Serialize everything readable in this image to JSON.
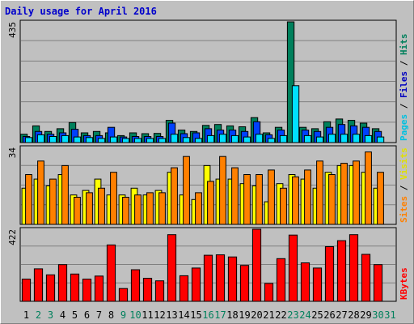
{
  "title": "Daily usage for April 2016",
  "colors": {
    "hits": "#00805c",
    "files": "#0040ff",
    "pages": "#00e0ff",
    "visits": "#ffff00",
    "sites": "#ff8000",
    "kbytes": "#ff0000",
    "weekend": "#00805c",
    "weekday": "#000000",
    "background": "#c0c0c0",
    "grid": "#808080"
  },
  "legend": {
    "top": [
      {
        "name": "Pages",
        "color": "#00c0e0"
      },
      {
        "name": "Files",
        "color": "#0000c0"
      },
      {
        "name": "Hits",
        "color": "#00805c"
      }
    ],
    "middle": [
      {
        "name": "Sites",
        "color": "#ff8000"
      },
      {
        "name": "Visits",
        "color": "#e0e000"
      }
    ],
    "bottom": [
      {
        "name": "KBytes",
        "color": "#ff0000"
      }
    ]
  },
  "chart_data": {
    "type": "bar",
    "categories": [
      "1",
      "2",
      "3",
      "4",
      "5",
      "6",
      "7",
      "8",
      "9",
      "10",
      "11",
      "12",
      "13",
      "14",
      "15",
      "16",
      "17",
      "18",
      "19",
      "20",
      "21",
      "22",
      "23",
      "24",
      "25",
      "26",
      "27",
      "28",
      "29",
      "30",
      "31"
    ],
    "weekend_days": [
      "2",
      "3",
      "9",
      "10",
      "16",
      "17",
      "23",
      "24",
      "30",
      "31"
    ],
    "panels": [
      {
        "id": "hits-files-pages",
        "ymax_label": "435",
        "ymax": 435,
        "series": [
          {
            "name": "Hits",
            "values": [
              30,
              60,
              40,
              50,
              72,
              35,
              40,
              35,
              25,
              35,
              32,
              33,
              80,
              45,
              40,
              62,
              65,
              60,
              57,
              90,
              35,
              55,
              435,
              55,
              50,
              75,
              85,
              80,
              70,
              50,
              null
            ]
          },
          {
            "name": "Files",
            "values": [
              22,
              40,
              30,
              35,
              48,
              25,
              25,
              55,
              20,
              22,
              22,
              22,
              70,
              32,
              35,
              50,
              45,
              45,
              40,
              75,
              28,
              45,
              null,
              45,
              40,
              55,
              65,
              60,
              55,
              40,
              null
            ]
          },
          {
            "name": "Pages",
            "values": [
              18,
              28,
              22,
              25,
              20,
              18,
              15,
              20,
              15,
              15,
              15,
              15,
              30,
              18,
              15,
              25,
              30,
              25,
              20,
              30,
              15,
              25,
              205,
              25,
              20,
              30,
              30,
              30,
              25,
              20,
              null
            ]
          }
        ]
      },
      {
        "id": "visits-sites",
        "ymax_label": "34",
        "ymax": 34,
        "series": [
          {
            "name": "Visits",
            "values": [
              16,
              20,
              17,
              22,
              13,
              15,
              20,
              13,
              13,
              16,
              13,
              15,
              23,
              13,
              11,
              26,
              20,
              20,
              18,
              17,
              10,
              18,
              22,
              20,
              16,
              23,
              26,
              26,
              23,
              16,
              null
            ]
          },
          {
            "name": "Sites",
            "values": [
              22,
              28,
              20,
              26,
              12,
              14,
              16,
              23,
              12,
              13,
              14,
              14,
              25,
              30,
              14,
              19,
              30,
              25,
              22,
              22,
              24,
              16,
              21,
              24,
              28,
              22,
              27,
              28,
              32,
              23,
              null
            ]
          }
        ]
      },
      {
        "id": "kbytes",
        "ymax_label": "422",
        "ymax": 422,
        "series": [
          {
            "name": "KBytes",
            "values": [
              130,
              190,
              155,
              215,
              160,
              130,
              148,
              330,
              75,
              185,
              135,
              120,
              390,
              150,
              195,
              270,
              272,
              260,
              210,
              422,
              105,
              250,
              388,
              225,
              195,
              320,
              355,
              390,
              275,
              215,
              null
            ]
          }
        ]
      }
    ]
  }
}
